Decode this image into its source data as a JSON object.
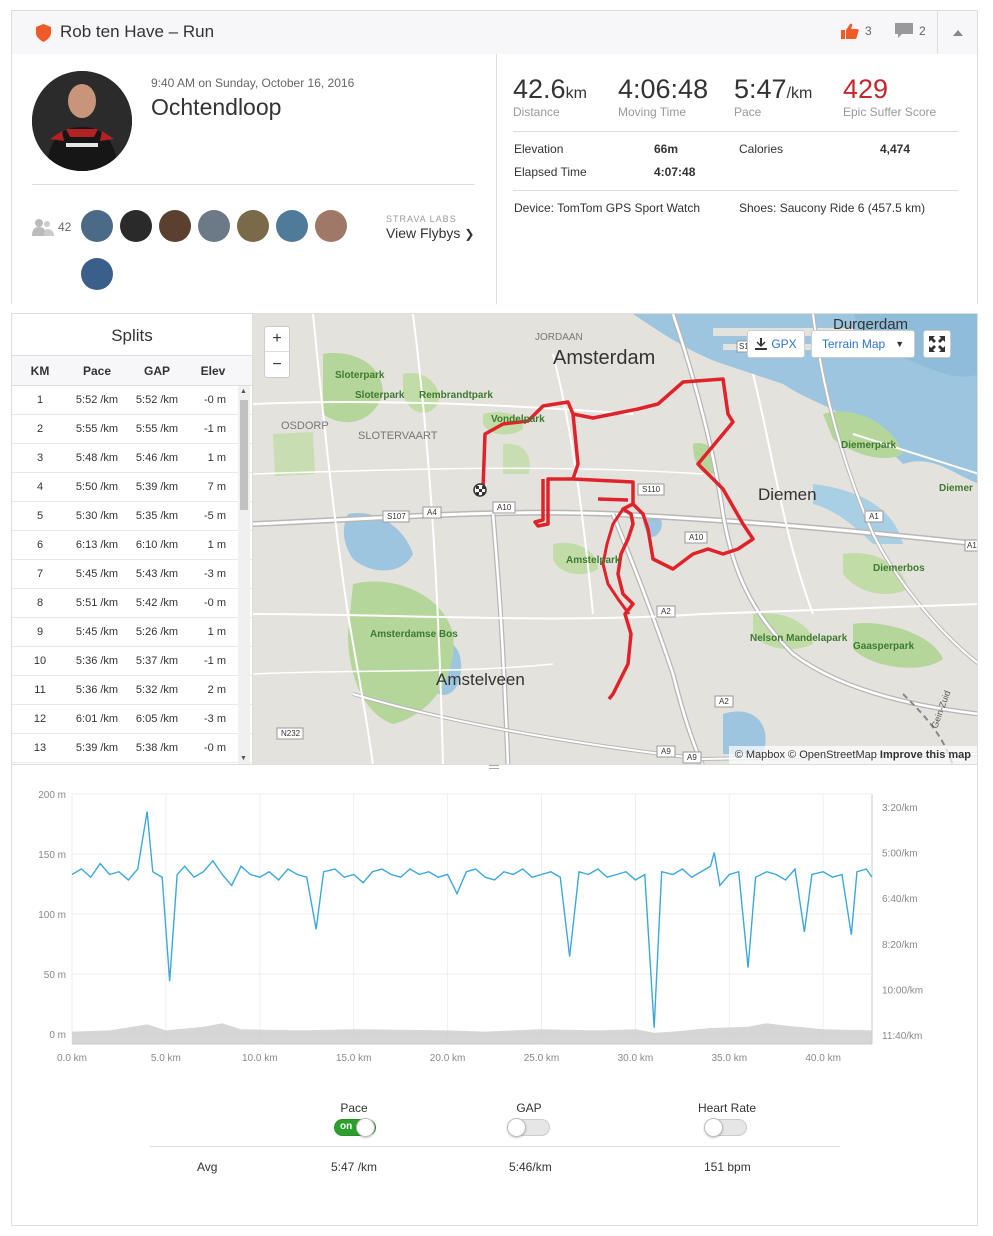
{
  "header": {
    "title": "Rob ten Have – Run",
    "kudos": "3",
    "comments": "2"
  },
  "activity": {
    "date": "9:40 AM on Sunday, October 16, 2016",
    "name": "Ochtendloop",
    "athlete_count": "42",
    "labs_label": "STRAVA LABS",
    "flybys_label": "View Flybys"
  },
  "stats": {
    "distance": {
      "value": "42.6",
      "unit": "km",
      "label": "Distance"
    },
    "moving_time": {
      "value": "4:06:48",
      "label": "Moving Time"
    },
    "pace": {
      "value": "5:47",
      "unit": "/km",
      "label": "Pace"
    },
    "suffer": {
      "value": "429",
      "label": "Epic Suffer Score"
    },
    "elevation_label": "Elevation",
    "elevation": "66m",
    "calories_label": "Calories",
    "calories": "4,474",
    "elapsed_label": "Elapsed Time",
    "elapsed": "4:07:48",
    "device": "Device: TomTom GPS Sport Watch",
    "shoes": "Shoes: Saucony Ride 6 (457.5 km)"
  },
  "splits": {
    "title": "Splits",
    "columns": [
      "KM",
      "Pace",
      "GAP",
      "Elev"
    ],
    "rows": [
      [
        "1",
        "5:52 /km",
        "5:52 /km",
        "-0 m"
      ],
      [
        "2",
        "5:55 /km",
        "5:55 /km",
        "-1 m"
      ],
      [
        "3",
        "5:48 /km",
        "5:46 /km",
        "1 m"
      ],
      [
        "4",
        "5:50 /km",
        "5:39 /km",
        "7 m"
      ],
      [
        "5",
        "5:30 /km",
        "5:35 /km",
        "-5 m"
      ],
      [
        "6",
        "6:13 /km",
        "6:10 /km",
        "1 m"
      ],
      [
        "7",
        "5:45 /km",
        "5:43 /km",
        "-3 m"
      ],
      [
        "8",
        "5:51 /km",
        "5:42 /km",
        "-0 m"
      ],
      [
        "9",
        "5:45 /km",
        "5:26 /km",
        "1 m"
      ],
      [
        "10",
        "5:36 /km",
        "5:37 /km",
        "-1 m"
      ],
      [
        "11",
        "5:36 /km",
        "5:32 /km",
        "2 m"
      ],
      [
        "12",
        "6:01 /km",
        "6:05 /km",
        "-3 m"
      ],
      [
        "13",
        "5:39 /km",
        "5:38 /km",
        "-0 m"
      ]
    ]
  },
  "map": {
    "gpx_label": "GPX",
    "terrain_label": "Terrain Map",
    "zoom_in": "+",
    "zoom_out": "−",
    "attribution": "© Mapbox © OpenStreetMap",
    "improve": "Improve this map",
    "labels": {
      "amsterdam": "Amsterdam",
      "diemen": "Diemen",
      "amstelveen": "Amstelveen",
      "durgerdam": "Durgerdam",
      "jordaan": "JORDAAN",
      "osdorp": "OSDORP",
      "slotervaart": "SLOTERVAART",
      "sloterpark": "Sloterpark",
      "sloterpark2": "Sloterpark",
      "rembrandtpark": "Rembrandtpark",
      "vondelpark": "Vondelpark",
      "amstelpark": "Amstelpark",
      "amsterdamse_bos": "Amsterdamse Bos",
      "diemerpark": "Diemerpark",
      "diemerbos": "Diemerbos",
      "nelson": "Nelson Mandelapark",
      "gaasperpark": "Gaasperpark",
      "diemen_edge": "Diemer",
      "gein": "Gein-Zuid",
      "s107": "S107",
      "a4": "A4",
      "a10": "A10",
      "a10b": "A10",
      "s110": "S110",
      "a1": "A1",
      "a1b": "A1",
      "a2": "A2",
      "a2b": "A2",
      "a9": "A9",
      "a9b": "A9",
      "n232": "N232",
      "s1": "S1"
    }
  },
  "chart_data": {
    "type": "line",
    "x_unit": "km",
    "xlim": [
      0,
      42.6
    ],
    "x_ticks": [
      "0.0 km",
      "5.0 km",
      "10.0 km",
      "15.0 km",
      "20.0 km",
      "25.0 km",
      "30.0 km",
      "35.0 km",
      "40.0 km"
    ],
    "y_left_ticks": [
      "200 m",
      "150 m",
      "100 m",
      "50 m",
      "0 m"
    ],
    "y_left_lim": [
      0,
      200
    ],
    "y_right_ticks": [
      "3:20/km",
      "5:00/km",
      "6:40/km",
      "8:20/km",
      "10:00/km",
      "11:40/km"
    ],
    "series": [
      {
        "name": "Pace",
        "unit": "min/km",
        "color": "#3ba8dc",
        "points": [
          [
            0,
            5.8
          ],
          [
            0.5,
            5.6
          ],
          [
            1,
            5.9
          ],
          [
            1.5,
            5.4
          ],
          [
            2,
            5.8
          ],
          [
            2.5,
            5.7
          ],
          [
            3,
            6.0
          ],
          [
            3.5,
            5.6
          ],
          [
            4,
            3.5
          ],
          [
            4.3,
            5.7
          ],
          [
            4.8,
            5.9
          ],
          [
            5.2,
            9.7
          ],
          [
            5.6,
            5.8
          ],
          [
            6,
            5.5
          ],
          [
            6.5,
            5.9
          ],
          [
            7,
            5.7
          ],
          [
            7.5,
            5.3
          ],
          [
            8,
            5.8
          ],
          [
            8.5,
            6.2
          ],
          [
            9,
            5.5
          ],
          [
            9.5,
            5.8
          ],
          [
            10,
            5.9
          ],
          [
            10.5,
            5.7
          ],
          [
            11,
            6.0
          ],
          [
            11.5,
            5.6
          ],
          [
            12,
            5.8
          ],
          [
            12.5,
            5.9
          ],
          [
            13,
            7.8
          ],
          [
            13.4,
            5.7
          ],
          [
            14,
            5.6
          ],
          [
            14.5,
            5.9
          ],
          [
            15,
            5.8
          ],
          [
            15.5,
            6.1
          ],
          [
            16,
            5.7
          ],
          [
            16.5,
            5.6
          ],
          [
            17,
            5.8
          ],
          [
            17.5,
            5.9
          ],
          [
            18,
            5.6
          ],
          [
            18.5,
            5.8
          ],
          [
            19,
            5.7
          ],
          [
            19.5,
            5.9
          ],
          [
            20,
            5.8
          ],
          [
            20.5,
            6.5
          ],
          [
            21,
            5.7
          ],
          [
            21.5,
            5.6
          ],
          [
            22,
            5.9
          ],
          [
            22.5,
            6.0
          ],
          [
            23,
            5.7
          ],
          [
            23.5,
            5.8
          ],
          [
            24,
            5.6
          ],
          [
            24.5,
            5.9
          ],
          [
            25,
            5.8
          ],
          [
            25.5,
            5.7
          ],
          [
            26,
            5.9
          ],
          [
            26.5,
            8.8
          ],
          [
            27,
            5.7
          ],
          [
            27.5,
            5.8
          ],
          [
            28,
            5.6
          ],
          [
            28.5,
            5.9
          ],
          [
            29,
            5.8
          ],
          [
            29.5,
            5.7
          ],
          [
            30,
            6.0
          ],
          [
            30.5,
            5.8
          ],
          [
            31,
            11.4
          ],
          [
            31.4,
            5.7
          ],
          [
            32,
            5.8
          ],
          [
            32.5,
            5.6
          ],
          [
            33,
            5.9
          ],
          [
            33.5,
            5.7
          ],
          [
            34,
            5.5
          ],
          [
            34.2,
            5.0
          ],
          [
            34.5,
            6.2
          ],
          [
            35,
            5.8
          ],
          [
            35.5,
            5.7
          ],
          [
            36,
            9.2
          ],
          [
            36.4,
            5.9
          ],
          [
            37,
            5.7
          ],
          [
            37.5,
            5.8
          ],
          [
            38,
            6.0
          ],
          [
            38.5,
            5.6
          ],
          [
            39,
            7.9
          ],
          [
            39.4,
            5.8
          ],
          [
            40,
            5.7
          ],
          [
            40.5,
            5.9
          ],
          [
            41,
            5.8
          ],
          [
            41.5,
            8.0
          ],
          [
            41.8,
            5.7
          ],
          [
            42.3,
            5.6
          ],
          [
            42.6,
            5.9
          ]
        ]
      },
      {
        "name": "Elevation",
        "unit": "m",
        "color": "#cccccc",
        "points": [
          [
            0,
            2
          ],
          [
            2,
            3
          ],
          [
            4,
            8
          ],
          [
            5,
            3
          ],
          [
            7,
            6
          ],
          [
            8,
            9
          ],
          [
            9,
            4
          ],
          [
            12,
            3
          ],
          [
            15,
            4
          ],
          [
            20,
            3
          ],
          [
            22,
            2
          ],
          [
            25,
            4
          ],
          [
            28,
            3
          ],
          [
            30,
            4
          ],
          [
            31,
            1
          ],
          [
            32,
            2
          ],
          [
            34,
            5
          ],
          [
            36,
            6
          ],
          [
            37,
            9
          ],
          [
            38,
            7
          ],
          [
            40,
            4
          ],
          [
            42.6,
            3
          ]
        ]
      }
    ]
  },
  "controls": {
    "pace_label": "Pace",
    "pace_state": "on",
    "gap_label": "GAP",
    "hr_label": "Heart Rate",
    "avg_label": "Avg",
    "avg_pace": "5:47 /km",
    "avg_gap": "5:46/km",
    "avg_hr": "151 bpm"
  }
}
